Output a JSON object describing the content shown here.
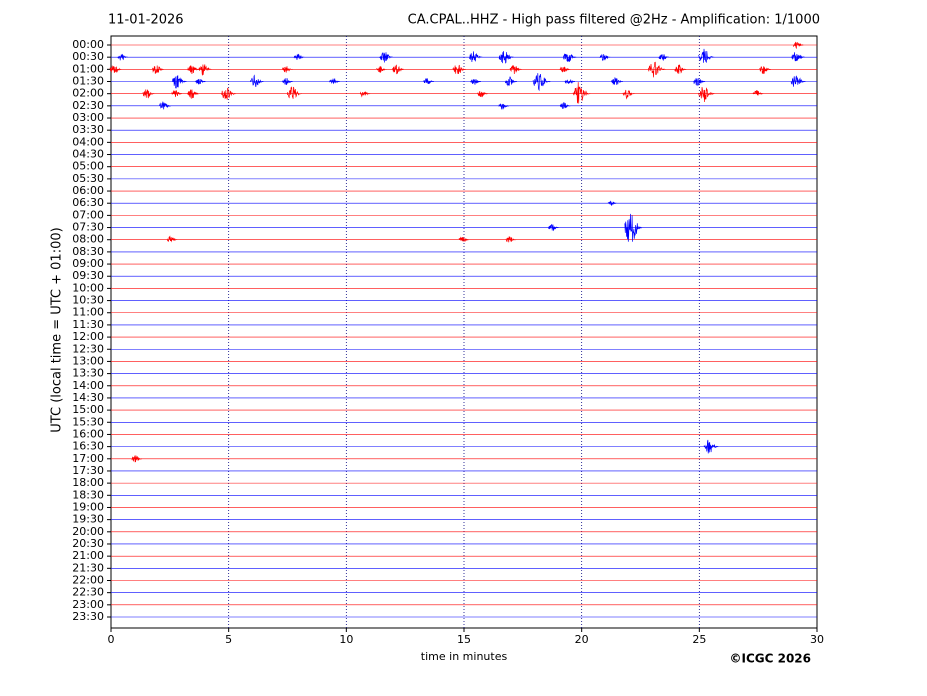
{
  "chart_data": {
    "type": "helicorder",
    "date": "11-01-2026",
    "title": "CA.CPAL..HHZ - High pass filtered @2Hz - Amplification: 1/1000",
    "xlabel": "time in minutes",
    "ylabel": "UTC (local time = UTC + 01:00)",
    "copyright": "©ICGC 2026",
    "categories": [
      "00:00",
      "00:30",
      "01:00",
      "01:30",
      "02:00",
      "02:30",
      "03:00",
      "03:30",
      "04:00",
      "04:30",
      "05:00",
      "05:30",
      "06:00",
      "06:30",
      "07:00",
      "07:30",
      "08:00",
      "08:30",
      "09:00",
      "09:30",
      "10:00",
      "10:30",
      "11:00",
      "11:30",
      "12:00",
      "12:30",
      "13:00",
      "13:30",
      "14:00",
      "14:30",
      "15:00",
      "15:30",
      "16:00",
      "16:30",
      "17:00",
      "17:30",
      "18:00",
      "18:30",
      "19:00",
      "19:30",
      "20:00",
      "20:30",
      "21:00",
      "21:30",
      "22:00",
      "22:30",
      "23:00",
      "23:30"
    ],
    "colors": [
      "#ff0000",
      "#0000ff"
    ],
    "xlim": [
      0,
      30
    ],
    "xticks": [
      0,
      5,
      10,
      15,
      20,
      25,
      30
    ],
    "grid": true,
    "events": [
      {
        "row": 0,
        "x": 29.2,
        "amplitude": 0.3
      },
      {
        "row": 1,
        "x": 0.5,
        "amplitude": 0.3
      },
      {
        "row": 1,
        "x": 8,
        "amplitude": 0.3
      },
      {
        "row": 1,
        "x": 11.7,
        "amplitude": 0.5
      },
      {
        "row": 1,
        "x": 15.5,
        "amplitude": 0.5
      },
      {
        "row": 1,
        "x": 16.8,
        "amplitude": 0.6
      },
      {
        "row": 1,
        "x": 19.5,
        "amplitude": 0.5
      },
      {
        "row": 1,
        "x": 21,
        "amplitude": 0.3
      },
      {
        "row": 1,
        "x": 23.5,
        "amplitude": 0.3
      },
      {
        "row": 1,
        "x": 25.3,
        "amplitude": 0.7
      },
      {
        "row": 1,
        "x": 29.2,
        "amplitude": 0.5
      },
      {
        "row": 2,
        "x": 0.2,
        "amplitude": 0.4
      },
      {
        "row": 2,
        "x": 2,
        "amplitude": 0.4
      },
      {
        "row": 2,
        "x": 3.5,
        "amplitude": 0.4
      },
      {
        "row": 2,
        "x": 4,
        "amplitude": 0.5
      },
      {
        "row": 2,
        "x": 7.5,
        "amplitude": 0.3
      },
      {
        "row": 2,
        "x": 11.5,
        "amplitude": 0.3
      },
      {
        "row": 2,
        "x": 12.2,
        "amplitude": 0.4
      },
      {
        "row": 2,
        "x": 14.8,
        "amplitude": 0.5
      },
      {
        "row": 2,
        "x": 17.2,
        "amplitude": 0.4
      },
      {
        "row": 2,
        "x": 19.3,
        "amplitude": 0.3
      },
      {
        "row": 2,
        "x": 23.2,
        "amplitude": 0.8
      },
      {
        "row": 2,
        "x": 24.2,
        "amplitude": 0.4
      },
      {
        "row": 2,
        "x": 27.8,
        "amplitude": 0.4
      },
      {
        "row": 3,
        "x": 2.9,
        "amplitude": 0.6
      },
      {
        "row": 3,
        "x": 3.8,
        "amplitude": 0.3
      },
      {
        "row": 3,
        "x": 6.2,
        "amplitude": 0.5
      },
      {
        "row": 3,
        "x": 7.5,
        "amplitude": 0.3
      },
      {
        "row": 3,
        "x": 9.5,
        "amplitude": 0.3
      },
      {
        "row": 3,
        "x": 13.5,
        "amplitude": 0.3
      },
      {
        "row": 3,
        "x": 15.5,
        "amplitude": 0.3
      },
      {
        "row": 3,
        "x": 17,
        "amplitude": 0.4
      },
      {
        "row": 3,
        "x": 18.3,
        "amplitude": 0.8
      },
      {
        "row": 3,
        "x": 19.5,
        "amplitude": 0.3
      },
      {
        "row": 3,
        "x": 21.5,
        "amplitude": 0.4
      },
      {
        "row": 3,
        "x": 25,
        "amplitude": 0.4
      },
      {
        "row": 3,
        "x": 29.2,
        "amplitude": 0.6
      },
      {
        "row": 4,
        "x": 1.6,
        "amplitude": 0.4
      },
      {
        "row": 4,
        "x": 2.8,
        "amplitude": 0.3
      },
      {
        "row": 4,
        "x": 3.5,
        "amplitude": 0.4
      },
      {
        "row": 4,
        "x": 5,
        "amplitude": 0.6
      },
      {
        "row": 4,
        "x": 7.8,
        "amplitude": 0.6
      },
      {
        "row": 4,
        "x": 10.8,
        "amplitude": 0.3
      },
      {
        "row": 4,
        "x": 15.8,
        "amplitude": 0.3
      },
      {
        "row": 4,
        "x": 20,
        "amplitude": 1.0
      },
      {
        "row": 4,
        "x": 22,
        "amplitude": 0.4
      },
      {
        "row": 4,
        "x": 25.3,
        "amplitude": 0.7
      },
      {
        "row": 4,
        "x": 27.5,
        "amplitude": 0.3
      },
      {
        "row": 5,
        "x": 2.3,
        "amplitude": 0.4
      },
      {
        "row": 5,
        "x": 16.7,
        "amplitude": 0.3
      },
      {
        "row": 5,
        "x": 19.3,
        "amplitude": 0.3
      },
      {
        "row": 13,
        "x": 21.3,
        "amplitude": 0.2
      },
      {
        "row": 15,
        "x": 18.8,
        "amplitude": 0.3
      },
      {
        "row": 15,
        "x": 22.2,
        "amplitude": 1.6
      },
      {
        "row": 16,
        "x": 2.6,
        "amplitude": 0.3
      },
      {
        "row": 16,
        "x": 15,
        "amplitude": 0.3
      },
      {
        "row": 16,
        "x": 17,
        "amplitude": 0.3
      },
      {
        "row": 33,
        "x": 25.5,
        "amplitude": 0.6
      },
      {
        "row": 34,
        "x": 1.1,
        "amplitude": 0.3
      }
    ]
  }
}
